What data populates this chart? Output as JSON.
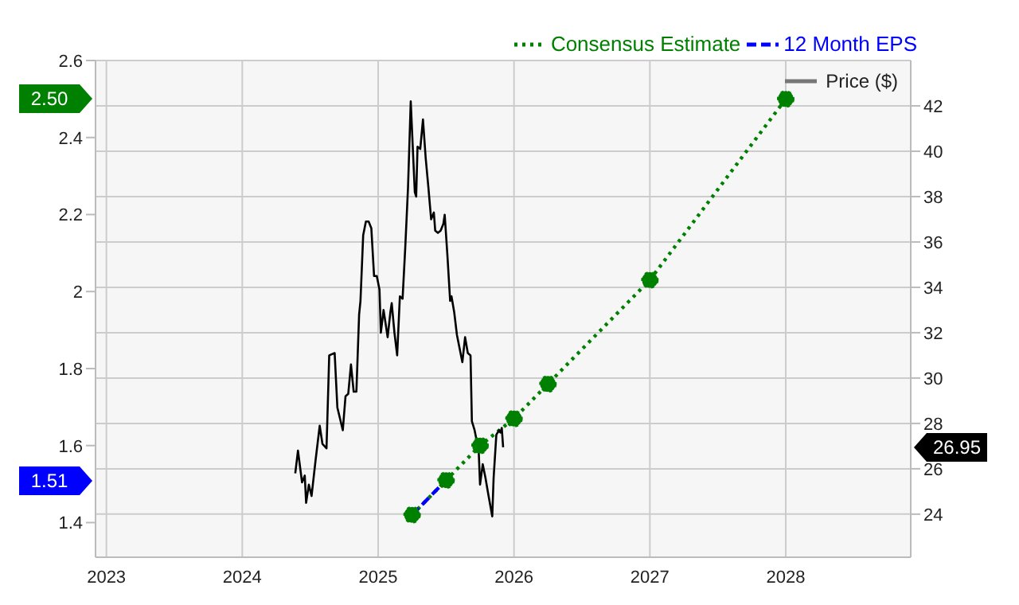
{
  "chart_data": {
    "type": "line",
    "xlim": [
      2022.92,
      2028.92
    ],
    "xticks": [
      2023,
      2024,
      2025,
      2026,
      2027,
      2028
    ],
    "ylim": [
      1.31,
      2.6
    ],
    "yticks": [
      1.4,
      1.6,
      1.8,
      2,
      2.2,
      2.4,
      2.6
    ],
    "y2lim": [
      22.1,
      44
    ],
    "y2ticks": [
      24,
      26,
      28,
      30,
      32,
      34,
      36,
      38,
      40,
      42
    ],
    "grid": true,
    "legend": "top right",
    "series": [
      {
        "name": "Consensus Estimate",
        "color": "#008000",
        "line_style": "dotted",
        "marker": "circle",
        "x": [
          2025.25,
          2025.5,
          2025.75,
          2026,
          2026.25,
          2027,
          2028
        ],
        "values": [
          1.42,
          1.51,
          1.6,
          1.67,
          1.76,
          2.03,
          2.5
        ]
      },
      {
        "name": "12 Month EPS",
        "color": "#0000ff",
        "line_style": "dashed",
        "marker": "none",
        "x": [
          2025.25,
          2025.5
        ],
        "values": [
          1.42,
          1.51
        ]
      },
      {
        "name": "Price ($)",
        "color": "#000000",
        "line_style": "solid",
        "marker": "none",
        "axis": "y2",
        "x": [
          2024.39,
          2024.41,
          2024.44,
          2024.46,
          2024.47,
          2024.49,
          2024.51,
          2024.54,
          2024.57,
          2024.59,
          2024.62,
          2024.64,
          2024.68,
          2024.7,
          2024.74,
          2024.76,
          2024.78,
          2024.8,
          2024.82,
          2024.84,
          2024.86,
          2024.87,
          2024.89,
          2024.91,
          2024.93,
          2024.95,
          2024.97,
          2024.99,
          2025.01,
          2025.02,
          2025.04,
          2025.07,
          2025.09,
          2025.1,
          2025.12,
          2025.14,
          2025.16,
          2025.18,
          2025.2,
          2025.22,
          2025.24,
          2025.26,
          2025.27,
          2025.28,
          2025.29,
          2025.31,
          2025.33,
          2025.35,
          2025.37,
          2025.39,
          2025.41,
          2025.42,
          2025.44,
          2025.46,
          2025.48,
          2025.49,
          2025.51,
          2025.53,
          2025.54,
          2025.56,
          2025.58,
          2025.61,
          2025.62,
          2025.64,
          2025.66,
          2025.68,
          2025.69,
          2025.71,
          2025.74,
          2025.75,
          2025.77,
          2025.79,
          2025.81,
          2025.84,
          2025.85,
          2025.87,
          2025.89,
          2025.9,
          2025.91,
          2025.92
        ],
        "values": [
          25.8,
          26.8,
          25.4,
          25.7,
          24.5,
          25.3,
          24.8,
          26.4,
          27.9,
          27.1,
          26.9,
          31,
          31.1,
          28.7,
          27.7,
          29.2,
          29.3,
          30.6,
          29.4,
          29.4,
          32.8,
          33.4,
          36.3,
          36.9,
          36.9,
          36.6,
          34.5,
          34.5,
          33.9,
          32,
          33,
          31.8,
          32.9,
          33.3,
          32,
          31,
          33.6,
          33.5,
          35.8,
          38.4,
          42.2,
          39.5,
          38.2,
          38,
          40.2,
          40.1,
          41.4,
          39.7,
          38.4,
          37,
          37.3,
          36.5,
          36.4,
          36.5,
          36.8,
          37.2,
          35.4,
          33.4,
          33.6,
          32.9,
          31.9,
          31,
          30.7,
          31.8,
          31.1,
          31,
          28.1,
          27.7,
          26.8,
          25.3,
          26.2,
          25.6,
          24.9,
          23.9,
          25.6,
          27.5,
          27.7,
          27.6,
          27.8,
          26.95
        ]
      }
    ],
    "annotations": [
      "2.50",
      "1.51",
      "26.95"
    ]
  }
}
